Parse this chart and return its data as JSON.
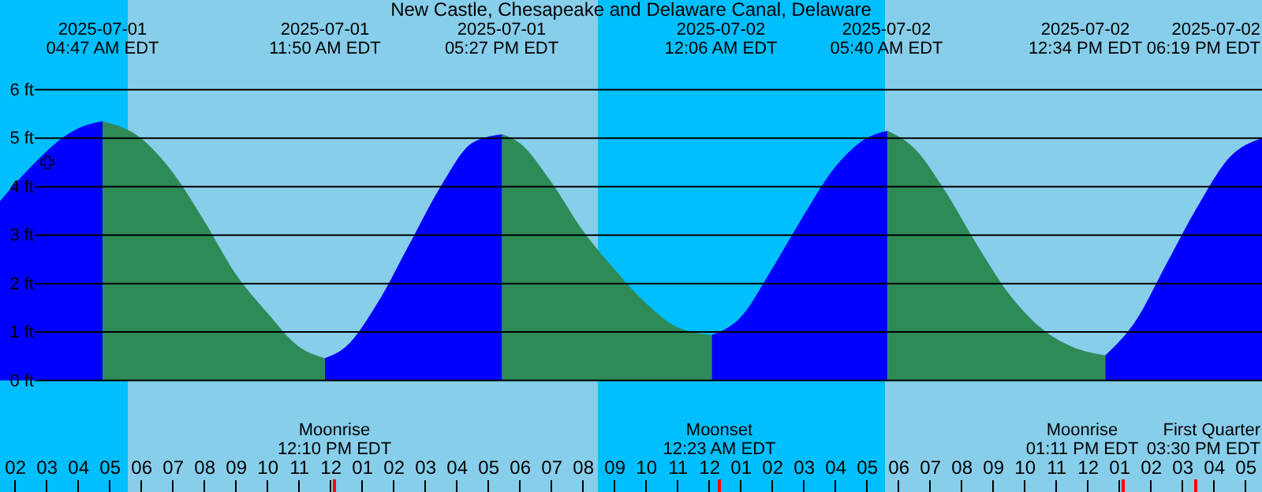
{
  "chart_data": {
    "type": "area",
    "title": "New Castle, Chesapeake and Delaware Canal, Delaware",
    "xlim": [
      "2025-07-01T01:32",
      "2025-07-02T17:32"
    ],
    "ylim": [
      -2.3,
      7.85
    ],
    "yticks": [
      {
        "value": 0,
        "label": "0 ft"
      },
      {
        "value": 1,
        "label": "1 ft"
      },
      {
        "value": 2,
        "label": "2 ft"
      },
      {
        "value": 3,
        "label": "3 ft"
      },
      {
        "value": 4,
        "label": "4 ft"
      },
      {
        "value": 5,
        "label": "5 ft"
      },
      {
        "value": 6,
        "label": "6 ft"
      }
    ],
    "xticks": [
      {
        "value": "2025-07-01T02:00",
        "label": "02"
      },
      {
        "value": "2025-07-01T03:00",
        "label": "03"
      },
      {
        "value": "2025-07-01T04:00",
        "label": "04"
      },
      {
        "value": "2025-07-01T05:00",
        "label": "05"
      },
      {
        "value": "2025-07-01T06:00",
        "label": "06"
      },
      {
        "value": "2025-07-01T07:00",
        "label": "07"
      },
      {
        "value": "2025-07-01T08:00",
        "label": "08"
      },
      {
        "value": "2025-07-01T09:00",
        "label": "09"
      },
      {
        "value": "2025-07-01T10:00",
        "label": "10"
      },
      {
        "value": "2025-07-01T11:00",
        "label": "11"
      },
      {
        "value": "2025-07-01T12:00",
        "label": "12"
      },
      {
        "value": "2025-07-01T13:00",
        "label": "01"
      },
      {
        "value": "2025-07-01T14:00",
        "label": "02"
      },
      {
        "value": "2025-07-01T15:00",
        "label": "03"
      },
      {
        "value": "2025-07-01T16:00",
        "label": "04"
      },
      {
        "value": "2025-07-01T17:00",
        "label": "05"
      },
      {
        "value": "2025-07-01T18:00",
        "label": "06"
      },
      {
        "value": "2025-07-01T19:00",
        "label": "07"
      },
      {
        "value": "2025-07-01T20:00",
        "label": "08"
      },
      {
        "value": "2025-07-01T21:00",
        "label": "09"
      },
      {
        "value": "2025-07-01T22:00",
        "label": "10"
      },
      {
        "value": "2025-07-01T23:00",
        "label": "11"
      },
      {
        "value": "2025-07-02T00:00",
        "label": "12"
      },
      {
        "value": "2025-07-02T01:00",
        "label": "01"
      },
      {
        "value": "2025-07-02T02:00",
        "label": "02"
      },
      {
        "value": "2025-07-02T03:00",
        "label": "03"
      },
      {
        "value": "2025-07-02T04:00",
        "label": "04"
      },
      {
        "value": "2025-07-02T05:00",
        "label": "05"
      },
      {
        "value": "2025-07-02T06:00",
        "label": "06"
      },
      {
        "value": "2025-07-02T07:00",
        "label": "07"
      },
      {
        "value": "2025-07-02T08:00",
        "label": "08"
      },
      {
        "value": "2025-07-02T09:00",
        "label": "09"
      },
      {
        "value": "2025-07-02T10:00",
        "label": "10"
      },
      {
        "value": "2025-07-02T11:00",
        "label": "11"
      },
      {
        "value": "2025-07-02T12:00",
        "label": "12"
      },
      {
        "value": "2025-07-02T13:00",
        "label": "01"
      },
      {
        "value": "2025-07-02T14:00",
        "label": "02"
      },
      {
        "value": "2025-07-02T15:00",
        "label": "03"
      },
      {
        "value": "2025-07-02T16:00",
        "label": "04"
      },
      {
        "value": "2025-07-02T17:00",
        "label": "05"
      }
    ],
    "grid": "y",
    "bands": [
      {
        "axis": "x",
        "from": "2025-07-01T01:32",
        "to": "2025-07-01T05:35",
        "color": "#00bfff"
      },
      {
        "axis": "x",
        "from": "2025-07-01T05:35",
        "to": "2025-07-01T20:29",
        "color": "#87ceeb"
      },
      {
        "axis": "x",
        "from": "2025-07-01T20:29",
        "to": "2025-07-02T05:35",
        "color": "#00bfff"
      },
      {
        "axis": "x",
        "from": "2025-07-02T05:35",
        "to": "2025-07-02T17:32",
        "color": "#87ceeb"
      }
    ],
    "series": [
      {
        "color": "#0000ff",
        "x": [
          "2025-07-01T01:32",
          "2025-07-01T02:30",
          "2025-07-01T03:30",
          "2025-07-01T04:00",
          "2025-07-01T04:47"
        ],
        "values": [
          3.7,
          4.4,
          5.0,
          5.2,
          5.35
        ]
      },
      {
        "color": "#2e8b57",
        "x": [
          "2025-07-01T04:47",
          "2025-07-01T06:00",
          "2025-07-01T07:00",
          "2025-07-01T08:00",
          "2025-07-01T09:00",
          "2025-07-01T10:00",
          "2025-07-01T11:00",
          "2025-07-01T11:50"
        ],
        "values": [
          5.35,
          5.0,
          4.3,
          3.3,
          2.2,
          1.4,
          0.7,
          0.46
        ]
      },
      {
        "color": "#0000ff",
        "x": [
          "2025-07-01T11:50",
          "2025-07-01T12:30",
          "2025-07-01T13:30",
          "2025-07-01T14:30",
          "2025-07-01T15:30",
          "2025-07-01T16:30",
          "2025-07-01T17:27"
        ],
        "values": [
          0.46,
          0.7,
          1.6,
          2.8,
          4.0,
          4.9,
          5.08
        ]
      },
      {
        "color": "#2e8b57",
        "x": [
          "2025-07-01T17:27",
          "2025-07-01T18:00",
          "2025-07-01T19:00",
          "2025-07-01T20:00",
          "2025-07-01T21:00",
          "2025-07-01T22:00",
          "2025-07-01T23:00",
          "2025-07-02T00:06"
        ],
        "values": [
          5.08,
          4.9,
          4.1,
          3.1,
          2.3,
          1.6,
          1.1,
          0.94
        ]
      },
      {
        "color": "#0000ff",
        "x": [
          "2025-07-02T00:06",
          "2025-07-02T01:00",
          "2025-07-02T02:00",
          "2025-07-02T03:00",
          "2025-07-02T04:00",
          "2025-07-02T05:00",
          "2025-07-02T05:40"
        ],
        "values": [
          0.94,
          1.3,
          2.3,
          3.4,
          4.4,
          5.0,
          5.15
        ]
      },
      {
        "color": "#2e8b57",
        "x": [
          "2025-07-02T05:40",
          "2025-07-02T06:30",
          "2025-07-02T07:30",
          "2025-07-02T08:30",
          "2025-07-02T09:30",
          "2025-07-02T10:30",
          "2025-07-02T11:30",
          "2025-07-02T12:34"
        ],
        "values": [
          5.15,
          4.8,
          3.9,
          2.8,
          1.8,
          1.1,
          0.7,
          0.52
        ]
      },
      {
        "color": "#0000ff",
        "x": [
          "2025-07-02T12:34",
          "2025-07-02T13:30",
          "2025-07-02T14:30",
          "2025-07-02T15:30",
          "2025-07-02T16:30",
          "2025-07-02T17:32"
        ],
        "values": [
          0.52,
          1.2,
          2.4,
          3.6,
          4.6,
          5.0
        ]
      },
      {
        "type": "scatter",
        "marker": "cross",
        "color": "#000000",
        "x": [
          "2025-07-01T03:02"
        ],
        "values": [
          4.5
        ]
      }
    ],
    "annotations": [
      "2025-07-01\n04:47 AM EDT",
      "2025-07-01\n11:50 AM EDT",
      "2025-07-01\n05:27 PM EDT",
      "2025-07-02\n12:06 AM EDT",
      "2025-07-02\n05:40 AM EDT",
      "2025-07-02\n12:34 PM EDT",
      "2025-07-02\n06:19 PM EDT",
      "Moonrise\n12:10 PM EDT",
      "Moonset\n12:23 AM EDT",
      "Moonrise\n01:11 PM EDT",
      "First Quarter\n03:30 PM EDT"
    ]
  }
}
